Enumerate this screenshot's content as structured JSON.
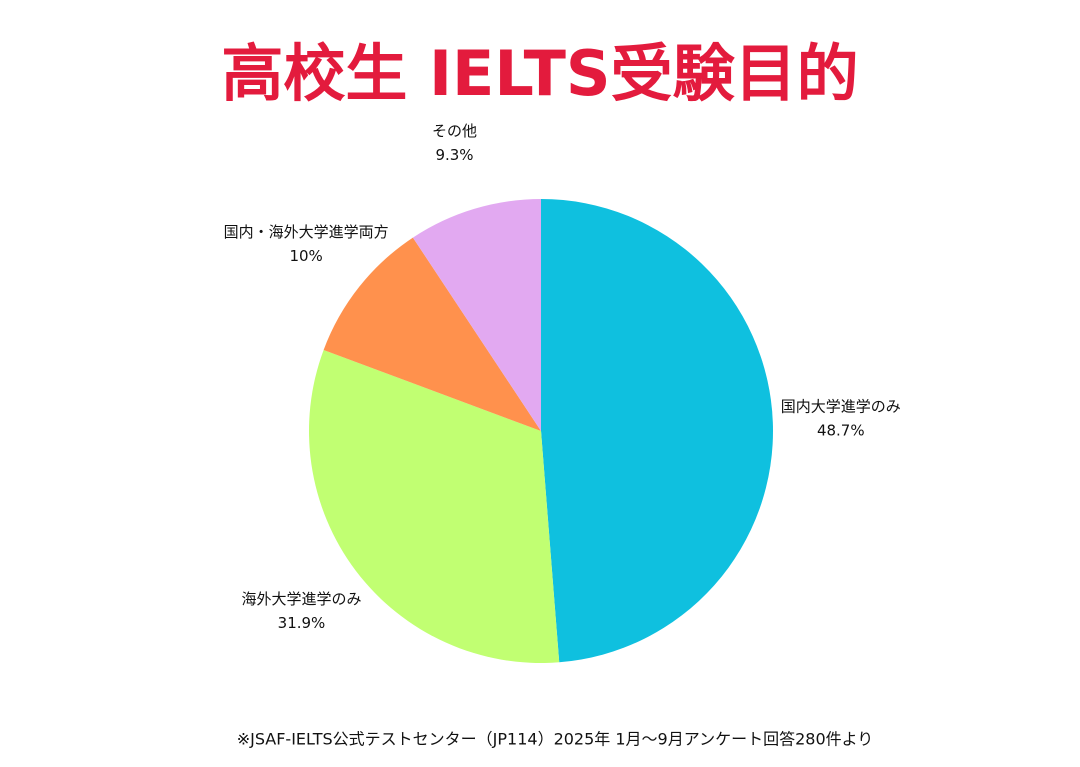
{
  "chart_data": {
    "type": "pie",
    "title": "高校生 IELTS受験目的",
    "categories": [
      "国内大学進学のみ",
      "海外大学進学のみ",
      "国内・海外大学進学両方",
      "その他"
    ],
    "values": [
      48.7,
      31.9,
      10,
      9.3
    ],
    "value_labels": [
      "48.7%",
      "31.9%",
      "10%",
      "9.3%"
    ],
    "colors": [
      "#0fc0df",
      "#c1ff72",
      "#ff914d",
      "#e2a9f1"
    ],
    "note": "※JSAF-IELTS公式テストセンター（JP114）2025年 1月〜9月アンケート回答280件より"
  }
}
